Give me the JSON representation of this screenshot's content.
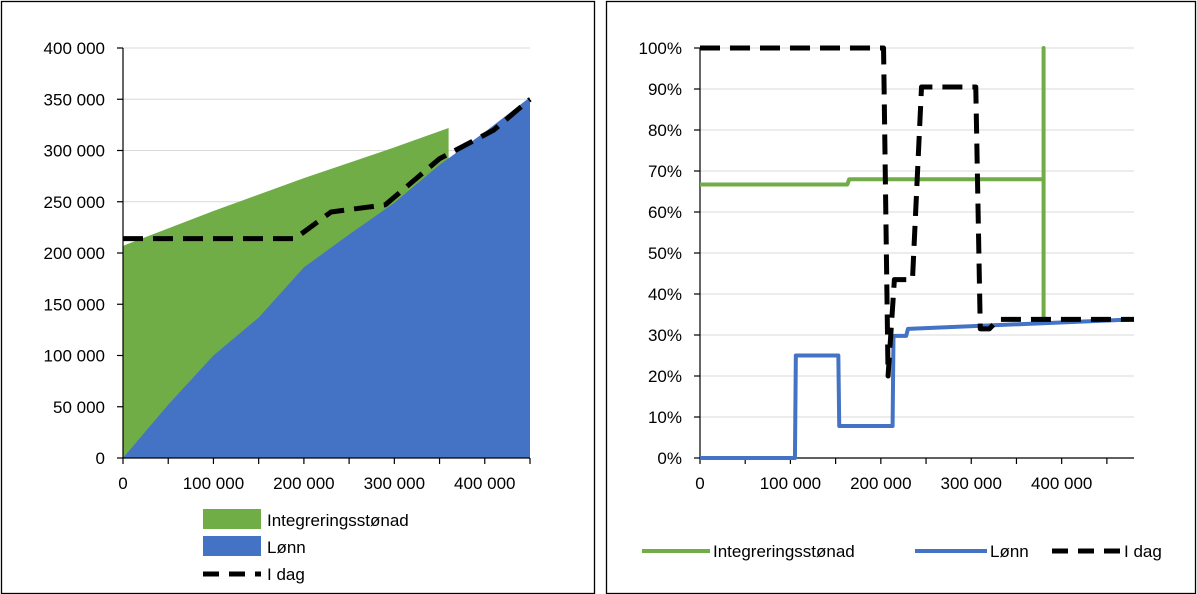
{
  "chart_data": [
    {
      "type": "area",
      "x_ticks": [
        "0",
        "100 000",
        "200 000",
        "300 000",
        "400 000"
      ],
      "y_ticks": [
        "0",
        "50 000",
        "100 000",
        "150 000",
        "200 000",
        "250 000",
        "300 000",
        "350 000",
        "400 000"
      ],
      "xlim": [
        0,
        450000
      ],
      "ylim": [
        0,
        400000
      ],
      "grid": "horizontal",
      "legend_position": "bottom",
      "series": [
        {
          "name": "Integreringsstønad",
          "kind": "area",
          "color": "#70ad47",
          "x": [
            0,
            100000,
            200000,
            300000,
            360000,
            360000
          ],
          "y": [
            207000,
            241000,
            273000,
            303000,
            322000,
            294000
          ]
        },
        {
          "name": "Lønn",
          "kind": "area",
          "color": "#4472c4",
          "x": [
            0,
            50000,
            100000,
            150000,
            200000,
            250000,
            300000,
            350000,
            400000,
            450000
          ],
          "y": [
            0,
            52000,
            100000,
            137000,
            186000,
            218000,
            249000,
            286000,
            318000,
            352000
          ]
        },
        {
          "name": "I dag",
          "kind": "line",
          "color": "#000000",
          "dash": true,
          "x": [
            0,
            100000,
            190000,
            230000,
            290000,
            350000,
            410000,
            450000
          ],
          "y": [
            214000,
            214000,
            214000,
            240000,
            247000,
            292000,
            320000,
            350000
          ]
        }
      ]
    },
    {
      "type": "line",
      "x_ticks": [
        "0",
        "100 000",
        "200 000",
        "300 000",
        "400 000"
      ],
      "y_ticks": [
        "0%",
        "10%",
        "20%",
        "30%",
        "40%",
        "50%",
        "60%",
        "70%",
        "80%",
        "90%",
        "100%"
      ],
      "xlim": [
        0,
        480000
      ],
      "ylim": [
        0,
        100
      ],
      "grid": "horizontal",
      "legend_position": "bottom",
      "series": [
        {
          "name": "Integreringsstønad",
          "color": "#70ad47",
          "dash": false,
          "x": [
            0,
            163000,
            165000,
            380000,
            380000,
            380000,
            380000
          ],
          "y": [
            66.7,
            66.7,
            68,
            68,
            100,
            33.8,
            33.8
          ]
        },
        {
          "name": "Lønn",
          "color": "#4472c4",
          "dash": false,
          "x": [
            0,
            105000,
            106000,
            153000,
            154000,
            213000,
            214000,
            228000,
            230000,
            480000
          ],
          "y": [
            0,
            0,
            25,
            25,
            7.8,
            7.8,
            29.8,
            29.8,
            31.5,
            33.8
          ]
        },
        {
          "name": "I dag",
          "color": "#000000",
          "dash": true,
          "x": [
            0,
            203000,
            208000,
            215000,
            235000,
            245000,
            305000,
            310000,
            320000,
            330000,
            480000
          ],
          "y": [
            100,
            100,
            20,
            43.5,
            43.5,
            90.5,
            90.5,
            31.5,
            31.5,
            33.8,
            33.8
          ]
        }
      ]
    }
  ]
}
